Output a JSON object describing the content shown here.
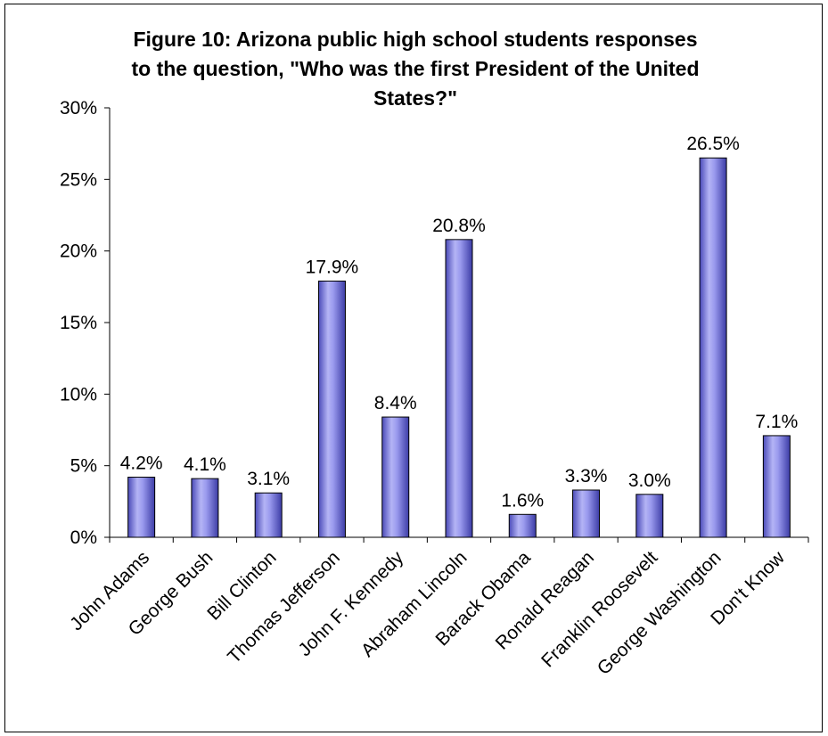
{
  "chart_data": {
    "type": "bar",
    "title": "Figure 10: Arizona public high school students responses to the question, \"Who was the first President of the United States?\"",
    "title_lines": [
      "Figure 10: Arizona public high school students responses",
      "to the question, \"Who was the first President of the United",
      "States?\""
    ],
    "categories": [
      "John Adams",
      "George Bush",
      "Bill Clinton",
      "Thomas Jefferson",
      "John F. Kennedy",
      "Abraham Lincoln",
      "Barack Obama",
      "Ronald Reagan",
      "Franklin Roosevelt",
      "George Washington",
      "Don't Know"
    ],
    "values": [
      4.2,
      4.1,
      3.1,
      17.9,
      8.4,
      20.8,
      1.6,
      3.3,
      3.0,
      26.5,
      7.1
    ],
    "data_labels": [
      "4.2%",
      "4.1%",
      "3.1%",
      "17.9%",
      "8.4%",
      "20.8%",
      "1.6%",
      "3.3%",
      "3.0%",
      "26.5%",
      "7.1%"
    ],
    "y_ticks": [
      0,
      5,
      10,
      15,
      20,
      25,
      30
    ],
    "y_tick_labels": [
      "0%",
      "5%",
      "10%",
      "15%",
      "20%",
      "25%",
      "30%"
    ],
    "ylim": [
      0,
      30
    ],
    "xlabel": "",
    "ylabel": "",
    "grid": false,
    "legend": "none",
    "bar_color": "#8f8fe8"
  }
}
